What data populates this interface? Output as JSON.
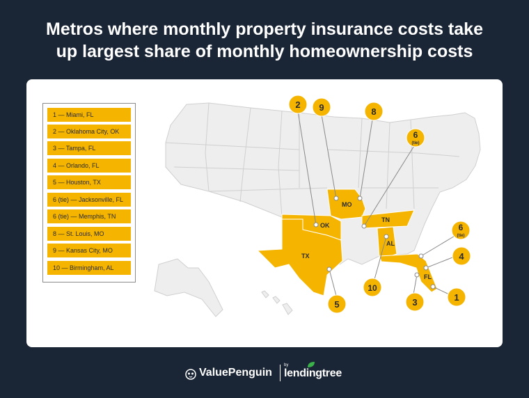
{
  "title": {
    "line1": "Metros where monthly property insurance costs take",
    "line2": "up largest share of monthly homeownership costs"
  },
  "legend": [
    {
      "label": "1 — Miami, FL"
    },
    {
      "label": "2 — Oklahoma City, OK"
    },
    {
      "label": "3 — Tampa, FL"
    },
    {
      "label": "4 — Orlando, FL"
    },
    {
      "label": "5 — Houston, TX"
    },
    {
      "label": "6 (tie) — Jacksonville, FL"
    },
    {
      "label": "6 (tie) — Memphis, TN"
    },
    {
      "label": "8 — St. Louis, MO"
    },
    {
      "label": "9 — Kansas City, MO"
    },
    {
      "label": "10 — Birmingham, AL"
    }
  ],
  "states": {
    "ok": "OK",
    "mo": "MO",
    "tn": "TN",
    "al": "AL",
    "tx": "TX",
    "fl": "FL"
  },
  "badges": {
    "b1": "1",
    "b2": "2",
    "b3": "3",
    "b4": "4",
    "b5": "5",
    "b6a": "6",
    "b6a_sub": "(tie)",
    "b6b": "6",
    "b6b_sub": "(tie)",
    "b8": "8",
    "b9": "9",
    "b10": "10"
  },
  "footer": {
    "valuepenguin": "ValuePenguin",
    "by": "by",
    "lendingtree": "lendingtree"
  },
  "colors": {
    "background": "#1a2535",
    "highlight": "#f4b400",
    "map_base": "#eeeeee"
  }
}
